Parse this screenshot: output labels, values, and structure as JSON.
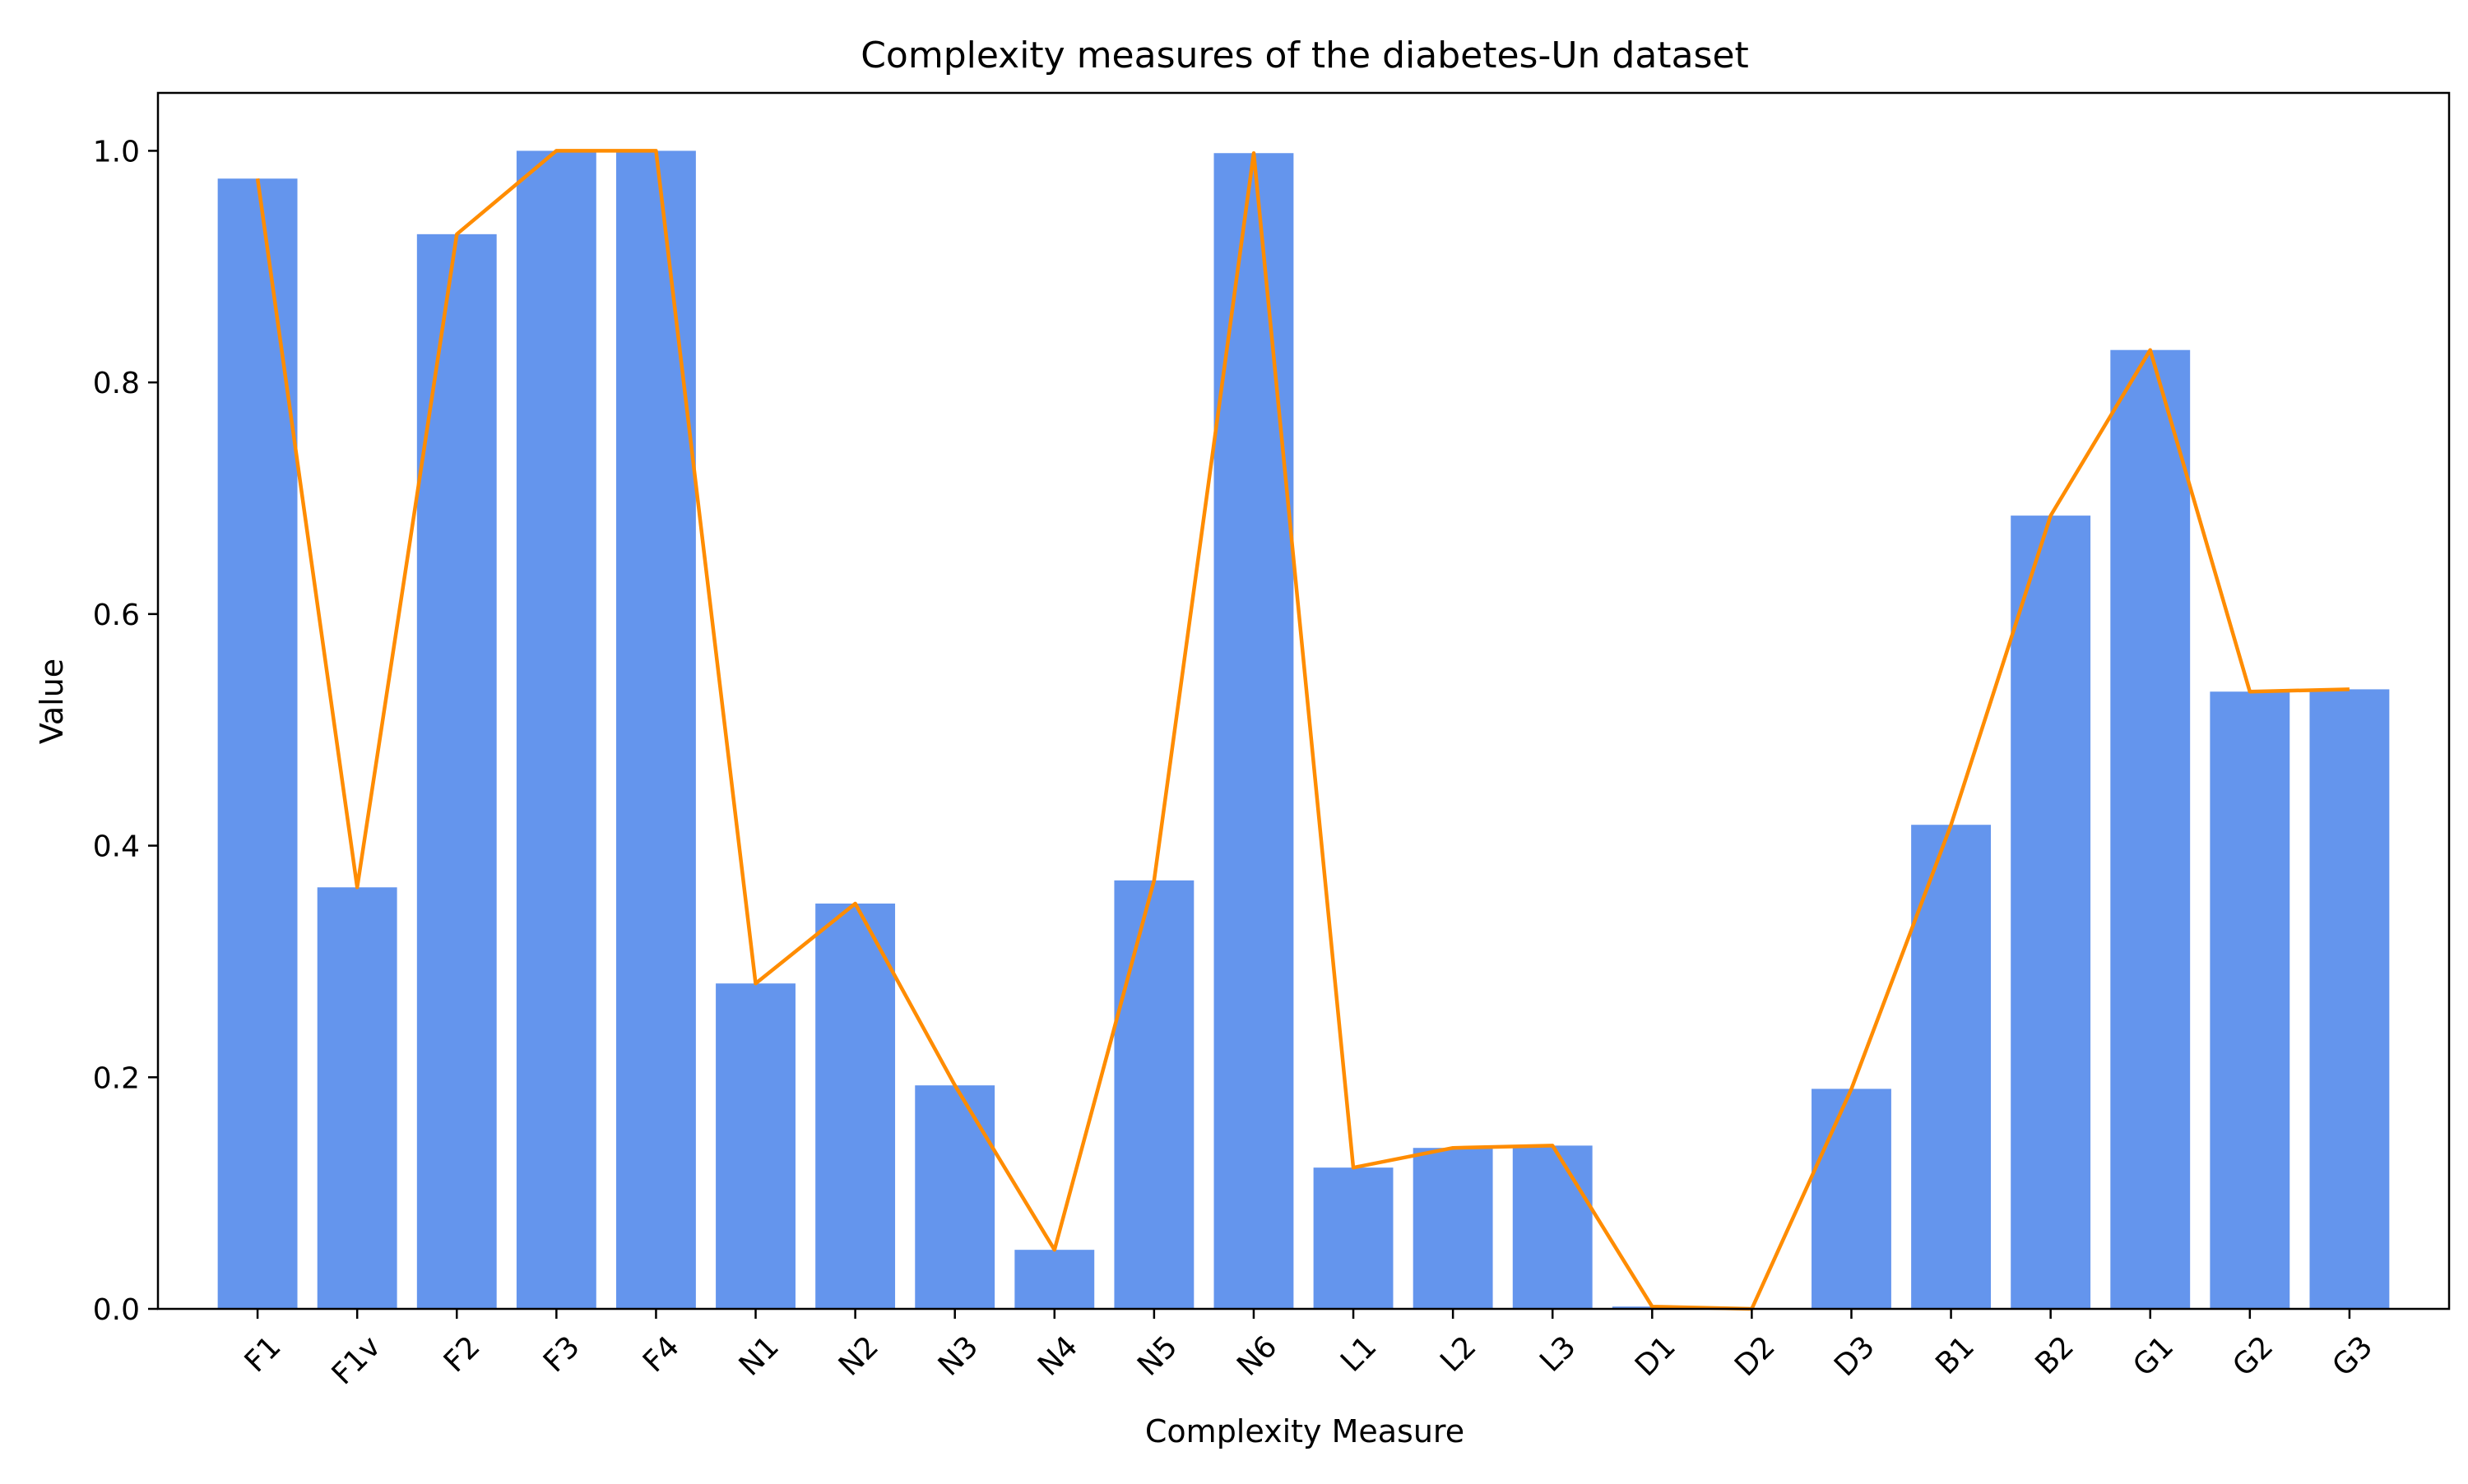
{
  "chart_data": {
    "type": "bar",
    "title": "Complexity measures of the diabetes-Un dataset",
    "xlabel": "Complexity Measure",
    "ylabel": "Value",
    "ylim": [
      0,
      1.05
    ],
    "yticks": [
      0.0,
      0.2,
      0.4,
      0.6,
      0.8,
      1.0
    ],
    "ytick_labels": [
      "0.0",
      "0.2",
      "0.4",
      "0.6",
      "0.8",
      "1.0"
    ],
    "categories": [
      "F1",
      "F1v",
      "F2",
      "F3",
      "F4",
      "N1",
      "N2",
      "N3",
      "N4",
      "N5",
      "N6",
      "L1",
      "L2",
      "L3",
      "D1",
      "D2",
      "D3",
      "B1",
      "B2",
      "G1",
      "G2",
      "G3"
    ],
    "values": [
      0.976,
      0.364,
      0.928,
      1.0,
      1.0,
      0.281,
      0.35,
      0.193,
      0.051,
      0.37,
      0.998,
      0.122,
      0.139,
      0.141,
      0.002,
      0.0,
      0.19,
      0.418,
      0.685,
      0.828,
      0.533,
      0.535
    ],
    "bar_color": "#6495ED",
    "line_color": "#FF8C00",
    "grid": false,
    "legend": "none"
  }
}
